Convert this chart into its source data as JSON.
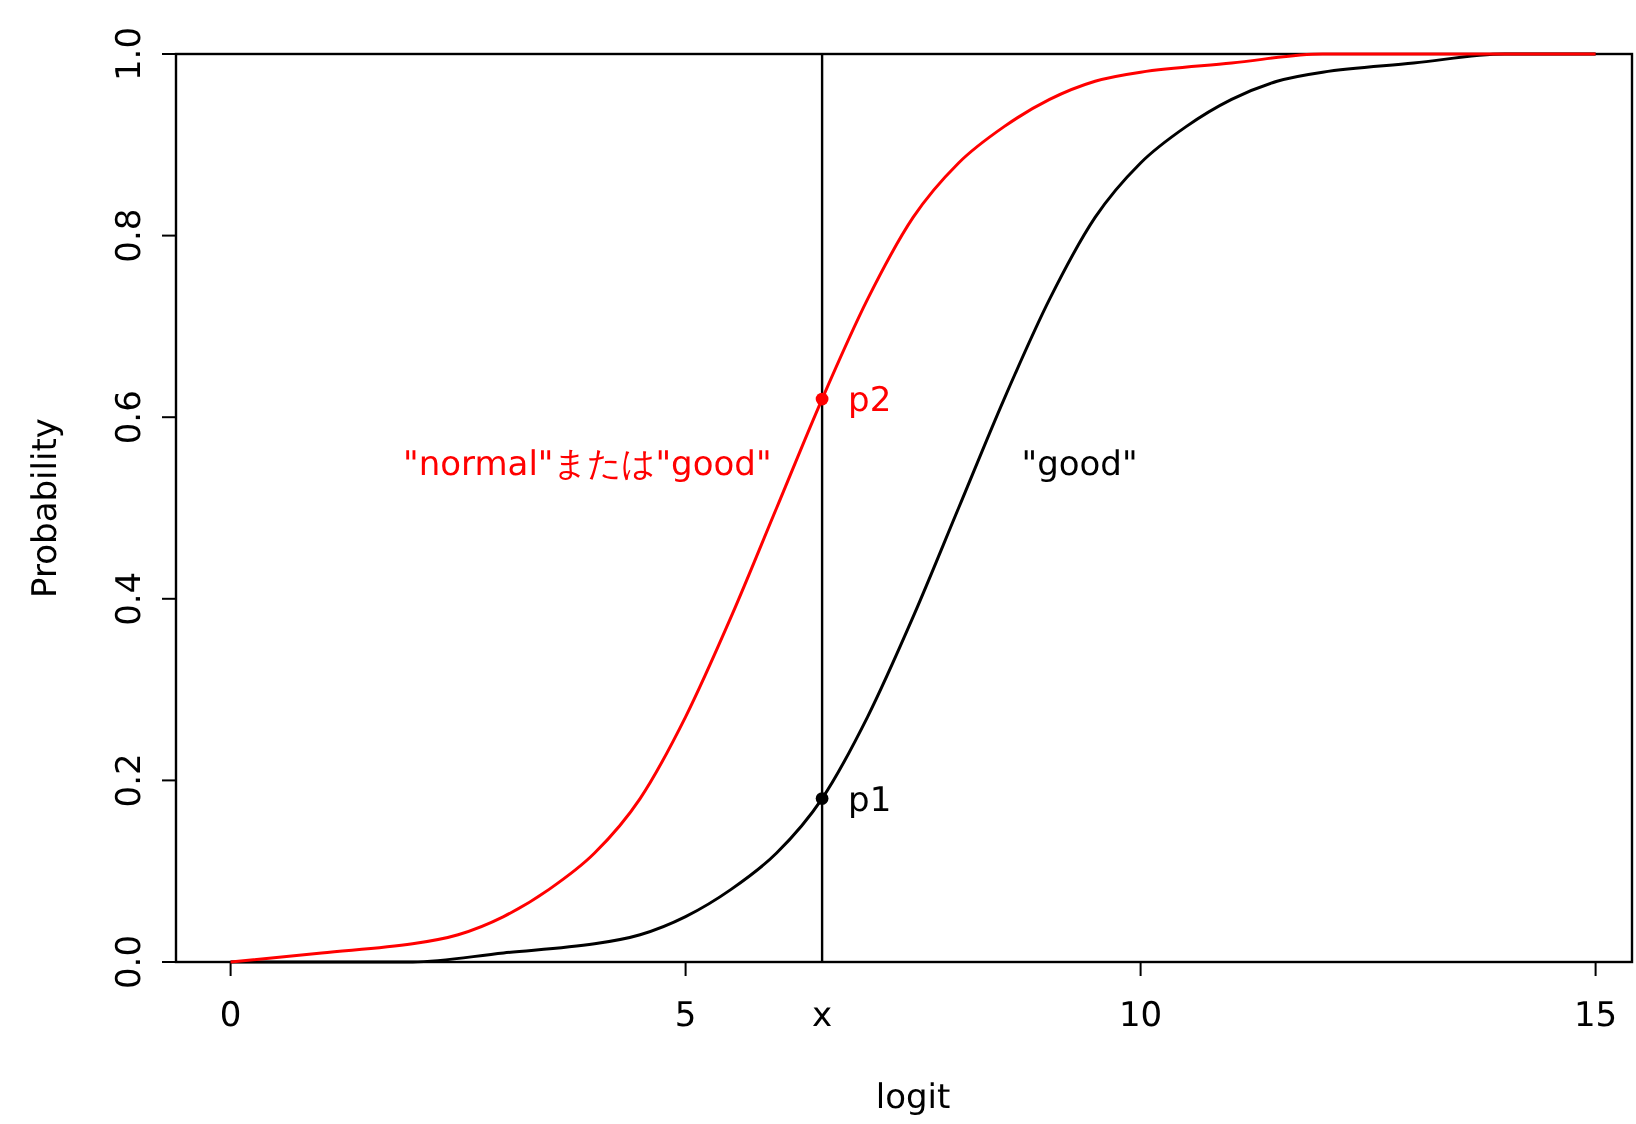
{
  "chart_data": {
    "type": "line",
    "xlabel": "logit",
    "ylabel": "Probability",
    "xlim": [
      -0.6,
      15.4
    ],
    "ylim": [
      0,
      1
    ],
    "xticks": [
      0,
      5,
      10,
      15
    ],
    "yticks": [
      {
        "value": 0,
        "label": "0.0"
      },
      {
        "value": 0.2,
        "label": "0.2"
      },
      {
        "value": 0.4,
        "label": "0.4"
      },
      {
        "value": 0.6,
        "label": "0.6"
      },
      {
        "value": 0.8,
        "label": "0.8"
      },
      {
        "value": 1,
        "label": "1.0"
      }
    ],
    "series": [
      {
        "name": "\"good\"",
        "color": "#000000",
        "marker": "none",
        "x": [
          0,
          1,
          2,
          3,
          4,
          4.5,
          5,
          5.5,
          6,
          6.5,
          7,
          7.5,
          8,
          8.5,
          9,
          9.5,
          10,
          10.5,
          11,
          11.5,
          12,
          13,
          14,
          15
        ],
        "values": [
          0,
          0,
          0,
          0.01,
          0.02,
          0.03,
          0.05,
          0.08,
          0.12,
          0.18,
          0.27,
          0.38,
          0.5,
          0.62,
          0.73,
          0.82,
          0.88,
          0.92,
          0.95,
          0.97,
          0.98,
          0.99,
          1,
          1
        ]
      },
      {
        "name": "\"normal\"または\"good\"",
        "color": "#ff0000",
        "marker": "none",
        "x": [
          0,
          1,
          2,
          2.5,
          3,
          3.5,
          4,
          4.5,
          5,
          5.5,
          6,
          6.5,
          7,
          7.5,
          8,
          8.5,
          9,
          9.5,
          10,
          11,
          12,
          13,
          14,
          15
        ],
        "values": [
          0,
          0.01,
          0.02,
          0.03,
          0.05,
          0.08,
          0.12,
          0.18,
          0.27,
          0.38,
          0.5,
          0.62,
          0.73,
          0.82,
          0.88,
          0.92,
          0.95,
          0.97,
          0.98,
          0.99,
          1,
          1,
          1,
          1
        ]
      },
      {
        "type": "scatter",
        "marker": "circle",
        "x": [
          6.5,
          6.5
        ],
        "values": [
          0.18,
          0.62
        ],
        "colors": [
          "#000000",
          "#ff0000"
        ]
      }
    ],
    "annotations": [
      {
        "text": "p1",
        "x": 6.5,
        "y": 0.18
      },
      {
        "text": "p2",
        "x": 6.5,
        "y": 0.62
      }
    ],
    "ref_lines": [
      {
        "axis": "x",
        "value": 6.5,
        "label": "x",
        "color": "#000000"
      }
    ]
  }
}
